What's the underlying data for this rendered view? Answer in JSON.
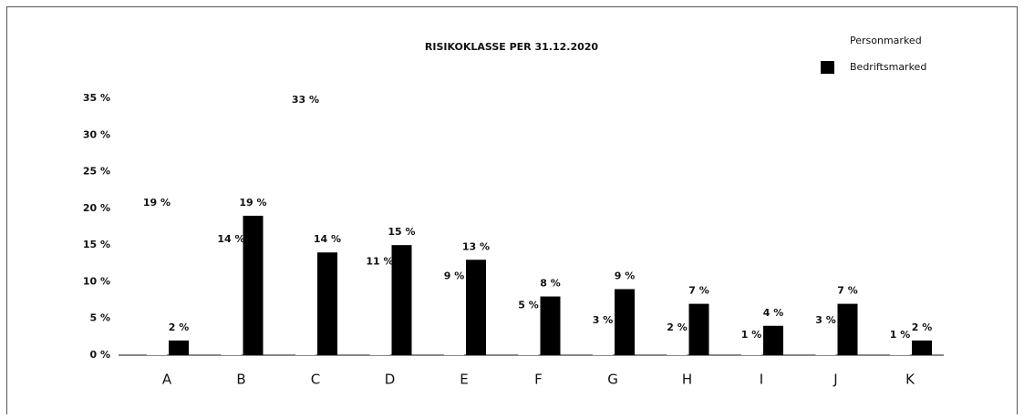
{
  "chart_data": {
    "type": "bar",
    "title": "RISIKOKLASSE PER 31.12.2020",
    "categories": [
      "A",
      "B",
      "C",
      "D",
      "E",
      "F",
      "G",
      "H",
      "I",
      "J",
      "K"
    ],
    "series": [
      {
        "name": "Personmarked",
        "color": "#ffffff",
        "values": [
          19,
          14,
          33,
          11,
          9,
          5,
          3,
          2,
          1,
          3,
          1
        ],
        "value_labels": [
          "19 %",
          "14 %",
          "33 %",
          "11 %",
          "9 %",
          "5 %",
          "3 %",
          "2 %",
          "1 %",
          "3 %",
          "1 %"
        ]
      },
      {
        "name": "Bedriftsmarked",
        "color": "#000000",
        "values": [
          2,
          19,
          14,
          15,
          13,
          8,
          9,
          7,
          4,
          7,
          2
        ],
        "value_labels": [
          "2 %",
          "19 %",
          "14 %",
          "15 %",
          "13 %",
          "8 %",
          "9 %",
          "7 %",
          "4 %",
          "7 %",
          "2 %"
        ]
      }
    ],
    "ylim": [
      0,
      35
    ],
    "yticks": [
      {
        "value": 0,
        "label": "0 %"
      },
      {
        "value": 5,
        "label": "5 %"
      },
      {
        "value": 10,
        "label": "10 %"
      },
      {
        "value": 15,
        "label": "15 %"
      },
      {
        "value": 20,
        "label": "20 %"
      },
      {
        "value": 25,
        "label": "25 %"
      },
      {
        "value": 30,
        "label": "30 %"
      },
      {
        "value": 35,
        "label": "35 %"
      }
    ],
    "legend": "top-right",
    "grid": false
  }
}
